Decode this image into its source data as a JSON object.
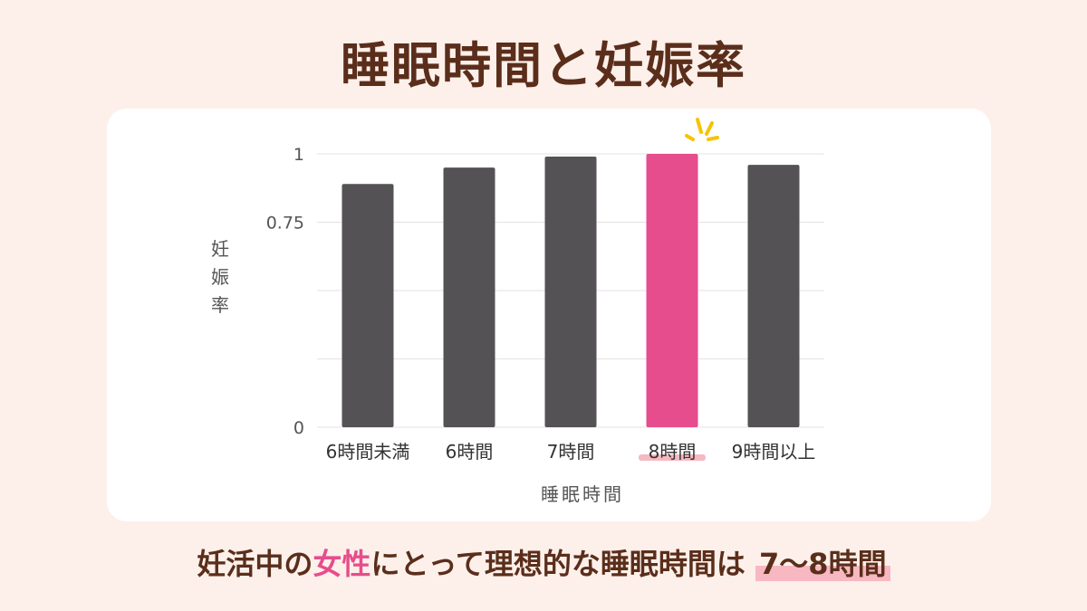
{
  "title": "睡眠時間と妊娠率",
  "caption": {
    "part1": "妊活中の",
    "part2": "女性",
    "part3": "にとって理想的な睡眠時間は",
    "part4": "7〜8時間"
  },
  "colors": {
    "background": "#fdf0ea",
    "title": "#5a2e1b",
    "bar_default": "#545254",
    "bar_highlight": "#e64d8c",
    "sparkle": "#f5c400",
    "underline": "#f7b8c2"
  },
  "chart_data": {
    "type": "bar",
    "categories": [
      "6時間未満",
      "6時間",
      "7時間",
      "8時間",
      "9時間以上"
    ],
    "values": [
      0.89,
      0.95,
      0.99,
      1.0,
      0.96
    ],
    "highlight_index": 3,
    "xlabel": "睡眠時間",
    "ylabel": "妊娠率",
    "ylim": [
      0,
      1
    ],
    "y_ticks": [
      0,
      0.25,
      0.5,
      0.75,
      1
    ],
    "y_tick_labels": [
      "0",
      "",
      "",
      "0.75",
      "1"
    ],
    "grid": true
  }
}
